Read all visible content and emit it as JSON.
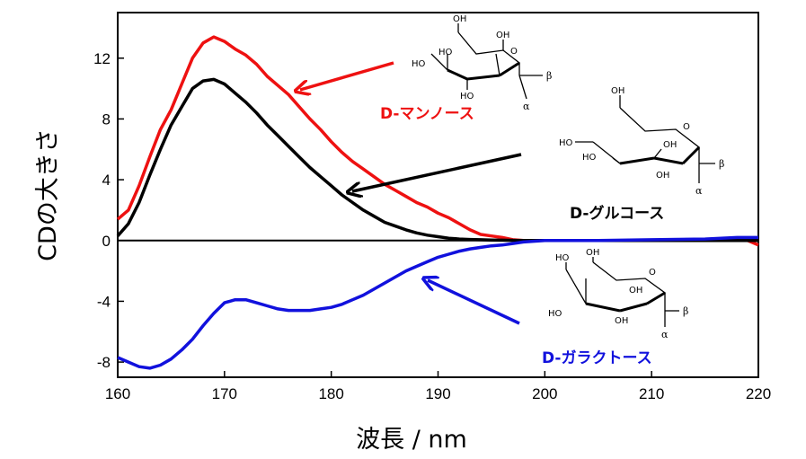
{
  "chart_data": {
    "type": "line",
    "title": "",
    "xlabel": "波長 / nm",
    "ylabel": "CDの大きさ",
    "xlim": [
      160,
      220
    ],
    "ylim": [
      -9,
      15
    ],
    "xticks": [
      160,
      170,
      180,
      190,
      200,
      210,
      220
    ],
    "yticks": [
      -8,
      -4,
      0,
      4,
      8,
      12
    ],
    "grid": false,
    "series": [
      {
        "name": "D-マンノース",
        "color": "#ee1111",
        "x": [
          160,
          161,
          162,
          163,
          164,
          165,
          166,
          167,
          168,
          169,
          170,
          171,
          172,
          173,
          174,
          175,
          176,
          177,
          178,
          179,
          180,
          181,
          182,
          183,
          184,
          185,
          186,
          187,
          188,
          189,
          190,
          191,
          192,
          193,
          194,
          195,
          196,
          197,
          198,
          200,
          205,
          210,
          215,
          217,
          219,
          220
        ],
        "y": [
          1.4,
          2.0,
          3.6,
          5.5,
          7.3,
          8.6,
          10.3,
          12.0,
          13.0,
          13.4,
          13.1,
          12.6,
          12.2,
          11.6,
          10.8,
          10.2,
          9.6,
          8.8,
          8.0,
          7.3,
          6.5,
          5.8,
          5.2,
          4.7,
          4.2,
          3.7,
          3.3,
          2.9,
          2.5,
          2.2,
          1.8,
          1.5,
          1.1,
          0.7,
          0.4,
          0.3,
          0.2,
          0.05,
          0.0,
          0.0,
          0.0,
          0.0,
          0.0,
          0.1,
          0.0,
          -0.3
        ]
      },
      {
        "name": "D-グルコース",
        "color": "#000000",
        "x": [
          160,
          161,
          162,
          163,
          164,
          165,
          166,
          167,
          168,
          169,
          170,
          171,
          172,
          173,
          174,
          175,
          176,
          177,
          178,
          179,
          180,
          181,
          182,
          183,
          184,
          185,
          186,
          187,
          188,
          189,
          190,
          191,
          192,
          193,
          194,
          195,
          196,
          197,
          198,
          200,
          205,
          210,
          215,
          220
        ],
        "y": [
          0.3,
          1.1,
          2.5,
          4.3,
          6.0,
          7.6,
          8.8,
          10.0,
          10.5,
          10.6,
          10.3,
          9.7,
          9.1,
          8.4,
          7.6,
          6.9,
          6.2,
          5.5,
          4.8,
          4.2,
          3.6,
          3.0,
          2.5,
          2.0,
          1.6,
          1.2,
          0.95,
          0.7,
          0.5,
          0.35,
          0.25,
          0.15,
          0.1,
          0.07,
          0.05,
          0.03,
          0.02,
          0.01,
          0.0,
          0.0,
          0.0,
          0.0,
          0.0,
          0.0
        ]
      },
      {
        "name": "D-ガラクトース",
        "color": "#1111dd",
        "x": [
          160,
          161,
          162,
          163,
          164,
          165,
          166,
          167,
          168,
          169,
          170,
          171,
          172,
          173,
          174,
          175,
          176,
          177,
          178,
          179,
          180,
          181,
          182,
          183,
          184,
          185,
          186,
          187,
          188,
          189,
          190,
          191,
          192,
          193,
          194,
          195,
          196,
          197,
          198,
          200,
          205,
          210,
          215,
          218,
          220
        ],
        "y": [
          -7.7,
          -8.0,
          -8.3,
          -8.4,
          -8.2,
          -7.8,
          -7.2,
          -6.5,
          -5.6,
          -4.8,
          -4.1,
          -3.9,
          -3.9,
          -4.1,
          -4.3,
          -4.5,
          -4.6,
          -4.6,
          -4.6,
          -4.5,
          -4.4,
          -4.2,
          -3.9,
          -3.6,
          -3.2,
          -2.8,
          -2.4,
          -2.0,
          -1.7,
          -1.4,
          -1.1,
          -0.9,
          -0.7,
          -0.55,
          -0.45,
          -0.35,
          -0.3,
          -0.2,
          -0.1,
          0.0,
          0.0,
          0.05,
          0.1,
          0.2,
          0.2
        ]
      }
    ],
    "annotations": [
      {
        "label": "D-マンノース",
        "series": "D-マンノース",
        "color": "#ee1111"
      },
      {
        "label": "D-グルコース",
        "series": "D-グルコース",
        "color": "#000000"
      },
      {
        "label": "D-ガラクトース",
        "series": "D-ガラクトース",
        "color": "#1111dd"
      }
    ]
  },
  "molecules": {
    "oh": "OH",
    "ho": "HO",
    "o": "O",
    "alpha": "α",
    "beta": "β"
  }
}
